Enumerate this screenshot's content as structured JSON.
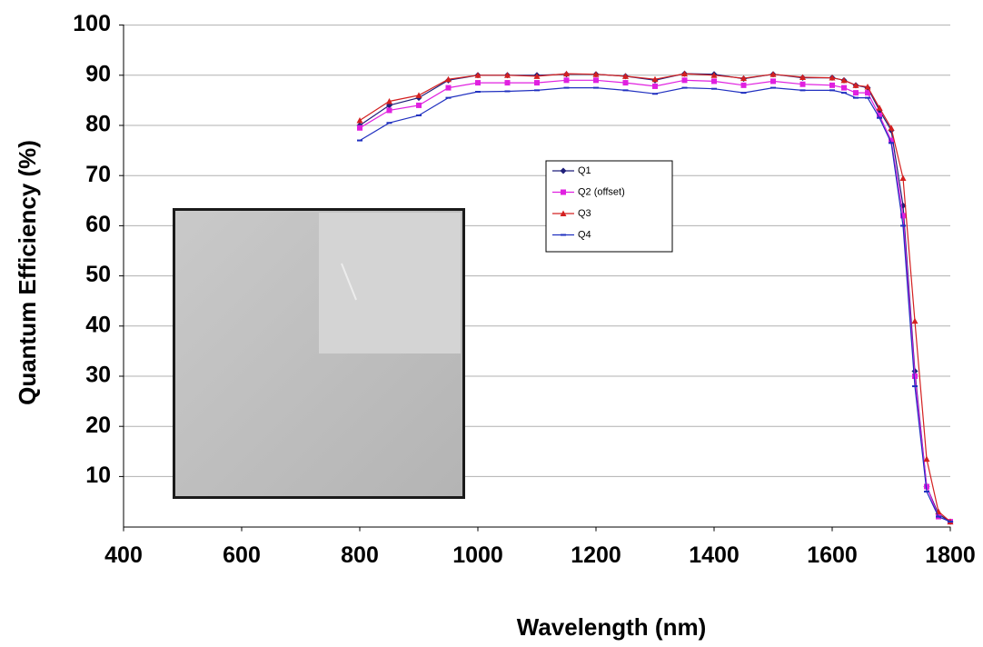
{
  "chart_data": {
    "type": "line",
    "x_label": "Wavelength (nm)",
    "y_label": "Quantum Efficiency (%)",
    "x": [
      800,
      850,
      900,
      950,
      1000,
      1050,
      1100,
      1150,
      1200,
      1250,
      1300,
      1350,
      1400,
      1450,
      1500,
      1550,
      1600,
      1620,
      1640,
      1660,
      1680,
      1700,
      1720,
      1740,
      1760,
      1780,
      1800
    ],
    "series": [
      {
        "name": "Q1",
        "color": "#1f1f7a",
        "marker": "diamond",
        "values": [
          80,
          84,
          85.5,
          89,
          90,
          90,
          90,
          90.2,
          90.2,
          89.8,
          89,
          90.3,
          90.2,
          89.3,
          90.2,
          89.5,
          89.5,
          89,
          88,
          87.5,
          83,
          79,
          64,
          31,
          8,
          2.5,
          1
        ]
      },
      {
        "name": "Q2 (offset)",
        "color": "#e020e0",
        "marker": "square",
        "values": [
          79.5,
          83,
          84,
          87.5,
          88.5,
          88.5,
          88.5,
          89,
          89,
          88.5,
          87.8,
          89,
          88.8,
          88,
          88.8,
          88.2,
          88,
          87.5,
          86.5,
          86.5,
          82,
          77,
          62,
          30,
          8,
          2,
          1
        ]
      },
      {
        "name": "Q3",
        "color": "#d42020",
        "marker": "triangle",
        "values": [
          81,
          84.8,
          86,
          89.2,
          90,
          90,
          89.8,
          90.3,
          90.2,
          89.8,
          89.2,
          90.3,
          90,
          89.4,
          90.2,
          89.6,
          89.5,
          89,
          88,
          87.7,
          83.5,
          79.5,
          69.5,
          41,
          13.5,
          3,
          1
        ]
      },
      {
        "name": "Q4",
        "color": "#2030c0",
        "marker": "dash",
        "values": [
          77,
          80.5,
          82,
          85.5,
          86.7,
          86.8,
          87,
          87.5,
          87.5,
          87,
          86.3,
          87.5,
          87.3,
          86.5,
          87.5,
          87,
          87,
          86.5,
          85.5,
          85.5,
          81.5,
          76.5,
          60,
          28,
          7,
          2,
          1
        ]
      }
    ],
    "xlim": [
      400,
      1800
    ],
    "xticks": [
      400,
      600,
      800,
      1000,
      1200,
      1400,
      1600,
      1800
    ],
    "ylim": [
      0,
      100
    ],
    "yticks": [
      10,
      20,
      30,
      40,
      50,
      60,
      70,
      80,
      90,
      100
    ],
    "grid": true
  }
}
